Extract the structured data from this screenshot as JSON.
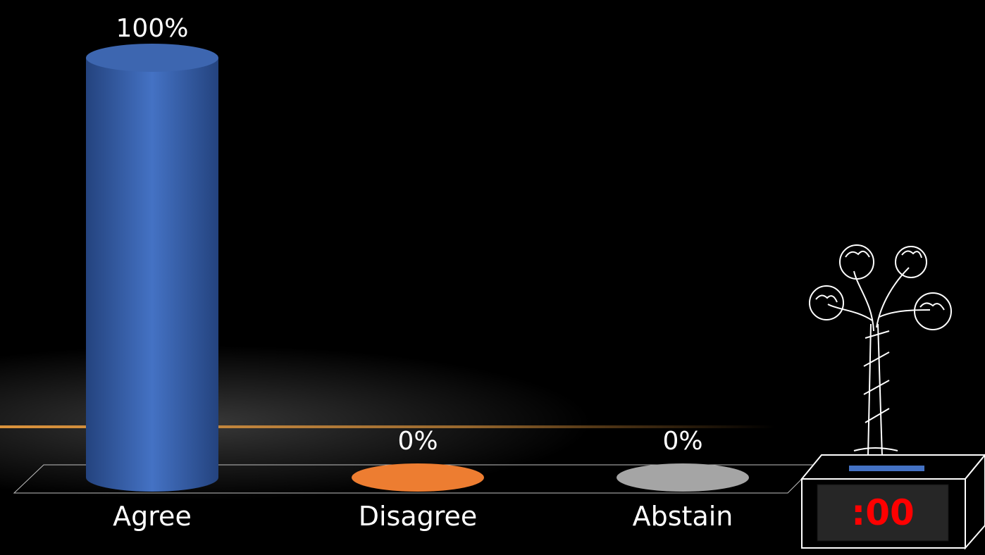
{
  "chart_data": {
    "type": "bar",
    "categories": [
      "Agree",
      "Disagree",
      "Abstain"
    ],
    "values": [
      100,
      0,
      0
    ],
    "value_labels": [
      "100%",
      "0%",
      "0%"
    ],
    "series": [
      {
        "values": [
          100,
          0,
          0
        ]
      }
    ],
    "colors": [
      "#4472c4",
      "#ed7d31",
      "#a5a5a5"
    ],
    "ylim": [
      0,
      100
    ],
    "bar_shape": "cylinder",
    "grid": false,
    "legend": "none"
  },
  "timer": {
    "display": ":00",
    "text_color": "#ff0000",
    "indicator_color": "#4472c4"
  },
  "icons": {
    "timer_decoration": "bonsai-tree-icon"
  },
  "colors": {
    "background": "#000000",
    "horizon_glow": "#f0a040"
  }
}
